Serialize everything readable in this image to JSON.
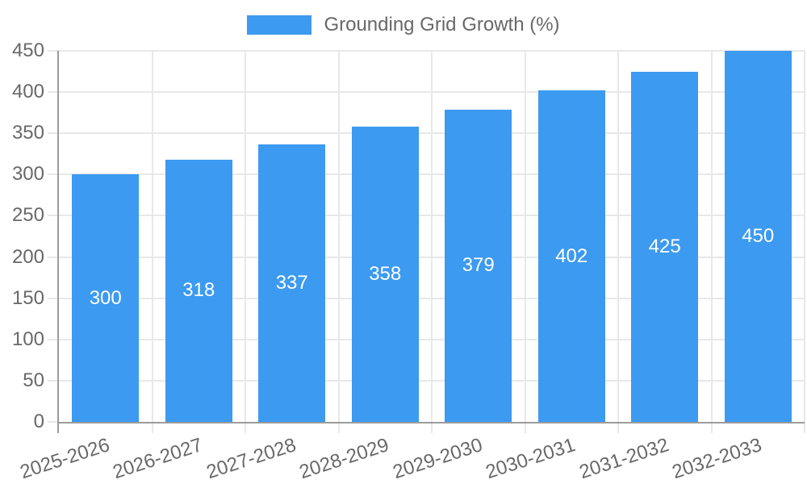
{
  "chart_data": {
    "type": "bar",
    "title": "Grounding Grid Growth (%)",
    "categories": [
      "2025-2026",
      "2026-2027",
      "2027-2028",
      "2028-2029",
      "2029-2030",
      "2030-2031",
      "2031-2032",
      "2032-2033"
    ],
    "values": [
      300,
      318,
      337,
      358,
      379,
      402,
      425,
      450
    ],
    "value_labels": [
      "300",
      "318",
      "337",
      "358",
      "379",
      "402",
      "425",
      "450"
    ],
    "xlabel": "",
    "ylabel": "",
    "ylim": [
      0,
      450
    ],
    "yticks": [
      0,
      50,
      100,
      150,
      200,
      250,
      300,
      350,
      400,
      450
    ],
    "grid": "both",
    "legend_position": "top-center",
    "value_label_position": "inside-center",
    "colors": {
      "bar": "#3c9af0",
      "grid": "#e8e8e8",
      "axis": "#9c9c9c",
      "text": "#686868",
      "value_label": "#ffffff",
      "background": "#ffffff"
    }
  }
}
